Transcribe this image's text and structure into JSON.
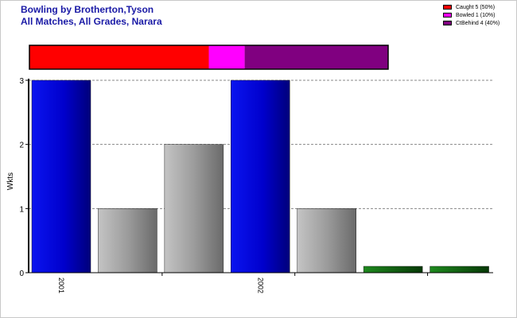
{
  "title_line1": "Bowling by Brotherton,Tyson",
  "title_line2": "All Matches, All Grades, Narara",
  "legend": [
    {
      "label": "Caught 5 (50%)",
      "color": "#ff0000"
    },
    {
      "label": "Bowled 1 (10%)",
      "color": "#ff00ff"
    },
    {
      "label": "CtBehind 4 (40%)",
      "color": "#800080"
    }
  ],
  "chart_data": {
    "type": "bar",
    "ylabel": "Wkts",
    "ylim": [
      0,
      3
    ],
    "yticks": [
      "0",
      "1",
      "2",
      "3"
    ],
    "grid": "horizontal dashed",
    "xtick_labels": [
      {
        "label": "2001",
        "after_bar": 0
      },
      {
        "label": "2002",
        "after_bar": 3
      }
    ],
    "bars": [
      {
        "value": 3,
        "fill": "blue"
      },
      {
        "value": 1,
        "fill": "gray"
      },
      {
        "value": 2,
        "fill": "gray"
      },
      {
        "value": 3,
        "fill": "blue"
      },
      {
        "value": 1,
        "fill": "gray"
      },
      {
        "value": 0.1,
        "fill": "green"
      },
      {
        "value": 0.1,
        "fill": "green"
      }
    ],
    "dismissal_breakdown": [
      {
        "name": "Caught",
        "count": 5,
        "percent": 50,
        "color": "#ff0000"
      },
      {
        "name": "Bowled",
        "count": 1,
        "percent": 10,
        "color": "#ff00ff"
      },
      {
        "name": "CtBehind",
        "count": 4,
        "percent": 40,
        "color": "#800080"
      }
    ]
  }
}
